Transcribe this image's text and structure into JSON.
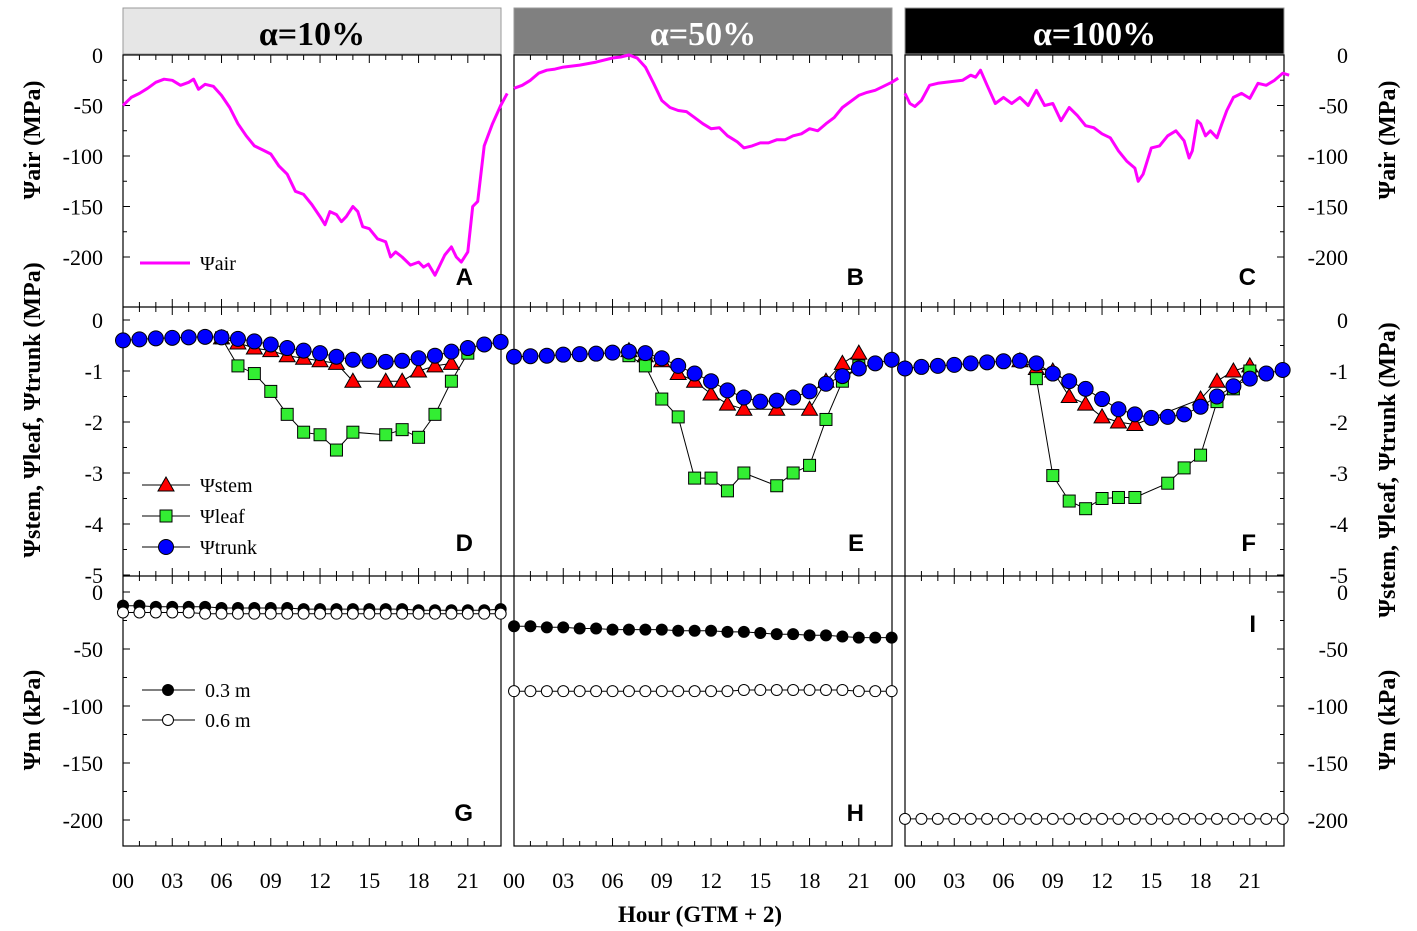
{
  "panel_headers": [
    {
      "label": "α=10%",
      "bg": "#e6e6e6",
      "fg": "#000000"
    },
    {
      "label": "α=50%",
      "bg": "#808080",
      "fg": "#ffffff"
    },
    {
      "label": "α=100%",
      "bg": "#000000",
      "fg": "#ffffff"
    }
  ],
  "panel_labels": [
    "A",
    "B",
    "C",
    "D",
    "E",
    "F",
    "G",
    "H",
    "I"
  ],
  "axis_titles": {
    "air": "Ψair (MPa)",
    "plant": "Ψstem, Ψleaf, Ψtrunk (MPa)",
    "soil": "Ψm (kPa)",
    "x": "Hour (GTM + 2)"
  },
  "x_ticks": [
    "00",
    "03",
    "06",
    "09",
    "12",
    "15",
    "18",
    "21"
  ],
  "legend_air": {
    "label": "Ψair",
    "color": "#ff00ff"
  },
  "legend_plant": [
    {
      "label": "Ψstem",
      "marker": "triangle",
      "color": "#ff0000"
    },
    {
      "label": "Ψleaf",
      "marker": "square",
      "color": "#33ee33"
    },
    {
      "label": "Ψtrunk",
      "marker": "circle",
      "color": "#0000ff"
    }
  ],
  "legend_soil": [
    {
      "label": "0.3 m",
      "marker": "filled-circle"
    },
    {
      "label": "0.6 m",
      "marker": "open-circle"
    }
  ],
  "chart_data": [
    {
      "type": "line",
      "rows": "Ψair",
      "yticks": [
        0,
        -50,
        -100,
        -150,
        -200
      ],
      "ylim": [
        -225,
        10
      ],
      "xlim": [
        0,
        23.5
      ],
      "series": [
        {
          "name": "Ψair",
          "panel": "A",
          "x": [
            0,
            0.5,
            1,
            1.5,
            2,
            2.5,
            3,
            3.5,
            4,
            4.3,
            4.6,
            5,
            5.5,
            6,
            6.5,
            7,
            7.5,
            8,
            8.5,
            9,
            9.5,
            10,
            10.5,
            11,
            11.5,
            12,
            12.3,
            12.6,
            13,
            13.3,
            13.6,
            14,
            14.3,
            14.6,
            15,
            15.5,
            16,
            16.3,
            16.6,
            17,
            17.5,
            18,
            18.3,
            18.6,
            19,
            19.3,
            19.6,
            20,
            20.3,
            20.6,
            21,
            21.3,
            21.6,
            22,
            22.5,
            23,
            23.4
          ],
          "y": [
            -50,
            -42,
            -38,
            -33,
            -27,
            -24,
            -25,
            -30,
            -27,
            -24,
            -34,
            -29,
            -31,
            -40,
            -52,
            -68,
            -80,
            -90,
            -94,
            -98,
            -110,
            -118,
            -135,
            -138,
            -148,
            -160,
            -168,
            -155,
            -158,
            -165,
            -160,
            -150,
            -155,
            -170,
            -172,
            -182,
            -185,
            -200,
            -195,
            -200,
            -208,
            -205,
            -210,
            -207,
            -218,
            -208,
            -198,
            -190,
            -200,
            -205,
            -195,
            -150,
            -145,
            -90,
            -68,
            -50,
            -38
          ]
        },
        {
          "name": "Ψair",
          "panel": "B",
          "x": [
            0,
            0.5,
            1,
            1.5,
            2,
            2.5,
            3,
            4,
            5,
            6,
            6.5,
            7,
            7.5,
            8,
            8.5,
            9,
            9.5,
            10,
            10.5,
            11,
            11.5,
            12,
            12.5,
            13,
            13.3,
            13.6,
            14,
            14.5,
            15,
            15.5,
            16,
            16.5,
            17,
            17.5,
            18,
            18.5,
            19,
            19.5,
            20,
            20.5,
            21,
            21.5,
            22,
            22.5,
            23,
            23.4
          ],
          "y": [
            -33,
            -30,
            -25,
            -18,
            -15,
            -14,
            -12,
            -10,
            -7,
            -3,
            -2,
            0,
            -3,
            -12,
            -28,
            -45,
            -52,
            -55,
            -56,
            -62,
            -68,
            -73,
            -72,
            -80,
            -83,
            -86,
            -92,
            -90,
            -87,
            -87,
            -84,
            -84,
            -80,
            -78,
            -73,
            -75,
            -68,
            -62,
            -52,
            -46,
            -40,
            -37,
            -35,
            -31,
            -27,
            -23
          ]
        },
        {
          "name": "Ψair",
          "panel": "C",
          "x": [
            0,
            0.3,
            0.6,
            1,
            1.5,
            2,
            2.5,
            3,
            3.5,
            4,
            4.3,
            4.6,
            5,
            5.5,
            6,
            6.5,
            7,
            7.5,
            8,
            8.5,
            9,
            9.5,
            10,
            10.5,
            11,
            11.5,
            12,
            12.5,
            13,
            13.5,
            14,
            14.2,
            14.5,
            15,
            15.5,
            16,
            16.5,
            17,
            17.3,
            17.5,
            17.8,
            18,
            18.3,
            18.6,
            19,
            19.3,
            19.6,
            20,
            20.5,
            21,
            21.5,
            22,
            22.5,
            23,
            23.4
          ],
          "y": [
            -38,
            -48,
            -51,
            -45,
            -30,
            -28,
            -27,
            -26,
            -25,
            -20,
            -22,
            -15,
            -30,
            -48,
            -42,
            -48,
            -42,
            -50,
            -35,
            -50,
            -48,
            -65,
            -52,
            -60,
            -70,
            -72,
            -78,
            -82,
            -95,
            -105,
            -112,
            -125,
            -118,
            -92,
            -90,
            -80,
            -75,
            -85,
            -102,
            -95,
            -65,
            -68,
            -80,
            -75,
            -82,
            -68,
            -55,
            -42,
            -38,
            -43,
            -28,
            -30,
            -25,
            -18,
            -20
          ]
        }
      ]
    },
    {
      "type": "line",
      "rows": "Ψstem, Ψleaf, Ψtrunk",
      "yticks": [
        0,
        -1,
        -2,
        -3,
        -4,
        -5
      ],
      "ylim": [
        -5,
        0
      ],
      "xlim": [
        0,
        23.5
      ],
      "series": [
        {
          "name": "Ψstem",
          "panel": "D",
          "x": [
            6,
            7,
            8,
            9,
            10,
            11,
            12,
            13,
            14,
            16,
            17,
            18,
            19,
            20
          ],
          "y": [
            -0.35,
            -0.45,
            -0.55,
            -0.6,
            -0.7,
            -0.75,
            -0.8,
            -0.85,
            -1.2,
            -1.2,
            -1.2,
            -1.0,
            -0.9,
            -0.85
          ]
        },
        {
          "name": "Ψleaf",
          "panel": "D",
          "x": [
            6,
            7,
            8,
            9,
            10,
            11,
            12,
            13,
            14,
            16,
            17,
            18,
            19,
            20,
            21
          ],
          "y": [
            -0.35,
            -0.9,
            -1.05,
            -1.4,
            -1.85,
            -2.2,
            -2.25,
            -2.55,
            -2.2,
            -2.25,
            -2.15,
            -2.3,
            -1.85,
            -1.2,
            -0.65
          ]
        },
        {
          "name": "Ψtrunk",
          "panel": "D",
          "x": [
            0,
            1,
            2,
            3,
            4,
            5,
            6,
            7,
            8,
            9,
            10,
            11,
            12,
            13,
            14,
            15,
            16,
            17,
            18,
            19,
            20,
            21,
            22,
            23
          ],
          "y": [
            -0.4,
            -0.38,
            -0.36,
            -0.35,
            -0.34,
            -0.33,
            -0.34,
            -0.37,
            -0.42,
            -0.48,
            -0.55,
            -0.6,
            -0.65,
            -0.72,
            -0.78,
            -0.8,
            -0.82,
            -0.8,
            -0.75,
            -0.7,
            -0.62,
            -0.55,
            -0.48,
            -0.43
          ]
        },
        {
          "name": "Ψstem",
          "panel": "E",
          "x": [
            7,
            8,
            9,
            10,
            11,
            12,
            13,
            14,
            16,
            18,
            19,
            20,
            21
          ],
          "y": [
            -0.6,
            -0.7,
            -0.8,
            -1.05,
            -1.2,
            -1.45,
            -1.65,
            -1.75,
            -1.75,
            -1.75,
            -1.2,
            -0.85,
            -0.65
          ]
        },
        {
          "name": "Ψleaf",
          "panel": "E",
          "x": [
            7,
            8,
            9,
            10,
            11,
            12,
            13,
            14,
            16,
            17,
            18,
            19,
            20,
            21
          ],
          "y": [
            -0.7,
            -0.9,
            -1.55,
            -1.9,
            -3.1,
            -3.1,
            -3.35,
            -3.0,
            -3.25,
            -3.0,
            -2.85,
            -1.95,
            -1.2,
            -0.9
          ]
        },
        {
          "name": "Ψtrunk",
          "panel": "E",
          "x": [
            0,
            1,
            2,
            3,
            4,
            5,
            6,
            7,
            8,
            9,
            10,
            11,
            12,
            13,
            14,
            15,
            16,
            17,
            18,
            19,
            20,
            21,
            22,
            23
          ],
          "y": [
            -0.72,
            -0.71,
            -0.7,
            -0.68,
            -0.67,
            -0.66,
            -0.64,
            -0.62,
            -0.65,
            -0.75,
            -0.9,
            -1.05,
            -1.2,
            -1.38,
            -1.52,
            -1.6,
            -1.58,
            -1.52,
            -1.4,
            -1.25,
            -1.1,
            -0.95,
            -0.85,
            -0.78
          ]
        },
        {
          "name": "Ψstem",
          "panel": "F",
          "x": [
            7,
            8,
            9,
            10,
            11,
            12,
            13,
            14,
            18,
            19,
            20,
            21
          ],
          "y": [
            -0.8,
            -0.95,
            -1.0,
            -1.5,
            -1.65,
            -1.9,
            -2.0,
            -2.05,
            -1.55,
            -1.2,
            -1.0,
            -0.9
          ]
        },
        {
          "name": "Ψleaf",
          "panel": "F",
          "x": [
            8,
            9,
            10,
            11,
            12,
            13,
            14,
            16,
            17,
            18,
            19,
            20,
            21
          ],
          "y": [
            -1.15,
            -3.05,
            -3.55,
            -3.7,
            -3.5,
            -3.48,
            -3.48,
            -3.2,
            -2.9,
            -2.65,
            -1.6,
            -1.35,
            -1.0
          ]
        },
        {
          "name": "Ψtrunk",
          "panel": "F",
          "x": [
            0,
            1,
            2,
            3,
            4,
            5,
            6,
            7,
            8,
            9,
            10,
            11,
            12,
            13,
            14,
            15,
            16,
            17,
            18,
            19,
            20,
            21,
            22,
            23
          ],
          "y": [
            -0.95,
            -0.92,
            -0.9,
            -0.88,
            -0.85,
            -0.83,
            -0.81,
            -0.8,
            -0.85,
            -1.05,
            -1.2,
            -1.35,
            -1.55,
            -1.75,
            -1.85,
            -1.92,
            -1.9,
            -1.85,
            -1.7,
            -1.5,
            -1.3,
            -1.15,
            -1.05,
            -0.98
          ]
        }
      ]
    },
    {
      "type": "scatter",
      "rows": "Ψm",
      "yticks": [
        0,
        -50,
        -100,
        -150,
        -200
      ],
      "ylim": [
        -220,
        0
      ],
      "xlim": [
        0,
        23.5
      ],
      "series": [
        {
          "name": "0.3 m",
          "panel": "G",
          "x": [
            0,
            1,
            2,
            3,
            4,
            5,
            6,
            7,
            8,
            9,
            10,
            11,
            12,
            13,
            14,
            15,
            16,
            17,
            18,
            19,
            20,
            21,
            22,
            23
          ],
          "y": [
            -12,
            -12,
            -13,
            -13,
            -13,
            -13,
            -14,
            -14,
            -14,
            -14,
            -14,
            -15,
            -15,
            -15,
            -15,
            -15,
            -15,
            -15,
            -16,
            -16,
            -16,
            -16,
            -16,
            -15
          ]
        },
        {
          "name": "0.6 m",
          "panel": "G",
          "x": [
            0,
            1,
            2,
            3,
            4,
            5,
            6,
            7,
            8,
            9,
            10,
            11,
            12,
            13,
            14,
            15,
            16,
            17,
            18,
            19,
            20,
            21,
            22,
            23
          ],
          "y": [
            -18,
            -18,
            -18,
            -18,
            -18,
            -19,
            -19,
            -19,
            -19,
            -19,
            -19,
            -19,
            -19,
            -19,
            -19,
            -19,
            -19,
            -19,
            -19,
            -19,
            -19,
            -19,
            -19,
            -19
          ]
        },
        {
          "name": "0.3 m",
          "panel": "H",
          "x": [
            0,
            1,
            2,
            3,
            4,
            5,
            6,
            7,
            8,
            9,
            10,
            11,
            12,
            13,
            14,
            15,
            16,
            17,
            18,
            19,
            20,
            21,
            22,
            23
          ],
          "y": [
            -30,
            -30,
            -31,
            -31,
            -32,
            -32,
            -33,
            -33,
            -33,
            -33,
            -34,
            -34,
            -34,
            -35,
            -35,
            -36,
            -37,
            -37,
            -38,
            -38,
            -39,
            -40,
            -40,
            -40
          ]
        },
        {
          "name": "0.6 m",
          "panel": "H",
          "x": [
            0,
            1,
            2,
            3,
            4,
            5,
            6,
            7,
            8,
            9,
            10,
            11,
            12,
            13,
            14,
            15,
            16,
            17,
            18,
            19,
            20,
            21,
            22,
            23
          ],
          "y": [
            -87,
            -87,
            -87,
            -87,
            -87,
            -87,
            -87,
            -87,
            -87,
            -87,
            -87,
            -87,
            -87,
            -87,
            -86,
            -86,
            -86,
            -86,
            -86,
            -86,
            -86,
            -87,
            -87,
            -87
          ]
        },
        {
          "name": "0.6 m",
          "panel": "I",
          "x": [
            0,
            1,
            2,
            3,
            4,
            5,
            6,
            7,
            8,
            9,
            10,
            11,
            12,
            13,
            14,
            15,
            16,
            17,
            18,
            19,
            20,
            21,
            22,
            23
          ],
          "y": [
            -199,
            -199,
            -199,
            -199,
            -199,
            -199,
            -199,
            -199,
            -199,
            -199,
            -199,
            -199,
            -199,
            -199,
            -199,
            -199,
            -199,
            -199,
            -199,
            -199,
            -199,
            -199,
            -199,
            -199
          ]
        }
      ]
    }
  ]
}
